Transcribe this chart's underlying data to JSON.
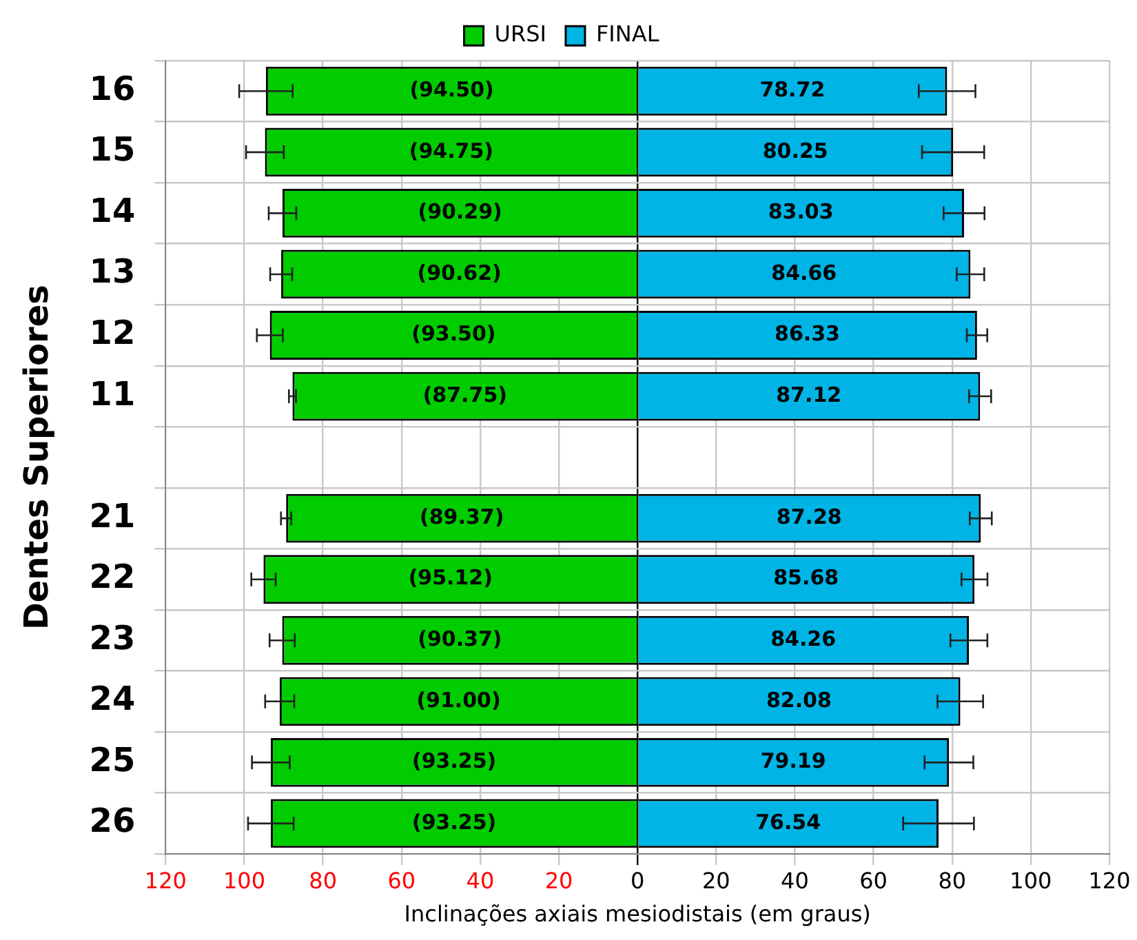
{
  "chart_data": {
    "type": "bar",
    "orientation": "horizontal",
    "stacked": true,
    "ylabel": "Dentes Superiores",
    "xlabel": "Inclinações axiais mesiodistais (em graus)",
    "categories": [
      "16",
      "15",
      "14",
      "13",
      "12",
      "11",
      null,
      "21",
      "22",
      "23",
      "24",
      "25",
      "26"
    ],
    "series": [
      {
        "name": "URSI",
        "color": "#00cc00",
        "values": [
          -94.5,
          -94.75,
          -90.29,
          -90.62,
          -93.5,
          -87.75,
          null,
          -89.37,
          -95.12,
          -90.37,
          -91.0,
          -93.25,
          -93.25
        ],
        "value_labels": [
          "(94.50)",
          "(94.75)",
          "(90.29)",
          "(90.62)",
          "(93.50)",
          "(87.75)",
          null,
          "(89.37)",
          "(95.12)",
          "(90.37)",
          "(91.00)",
          "(93.25)",
          "(93.25)"
        ],
        "errors": [
          6.8,
          4.8,
          3.5,
          2.8,
          3.3,
          0.9,
          null,
          1.3,
          3.1,
          3.2,
          3.7,
          4.8,
          5.8
        ]
      },
      {
        "name": "FINAL",
        "color": "#00b4e6",
        "values": [
          78.72,
          80.25,
          83.03,
          84.66,
          86.33,
          87.12,
          null,
          87.28,
          85.68,
          84.26,
          82.08,
          79.19,
          76.54
        ],
        "value_labels": [
          "78.72",
          "80.25",
          "83.03",
          "84.66",
          "86.33",
          "87.12",
          null,
          "87.28",
          "85.68",
          "84.26",
          "82.08",
          "79.19",
          "76.54"
        ],
        "errors": [
          7.2,
          7.9,
          5.2,
          3.5,
          2.6,
          2.8,
          null,
          2.8,
          3.3,
          4.7,
          5.8,
          6.2,
          9.0
        ]
      }
    ],
    "xlim": [
      -120,
      120
    ],
    "xticks": [
      {
        "value": -120,
        "label": "120"
      },
      {
        "value": -100,
        "label": "100"
      },
      {
        "value": -80,
        "label": "80"
      },
      {
        "value": -60,
        "label": "60"
      },
      {
        "value": -40,
        "label": "40"
      },
      {
        "value": -20,
        "label": "20"
      },
      0,
      20,
      40,
      60,
      80,
      100,
      120
    ],
    "grid": true,
    "legend": "top"
  }
}
